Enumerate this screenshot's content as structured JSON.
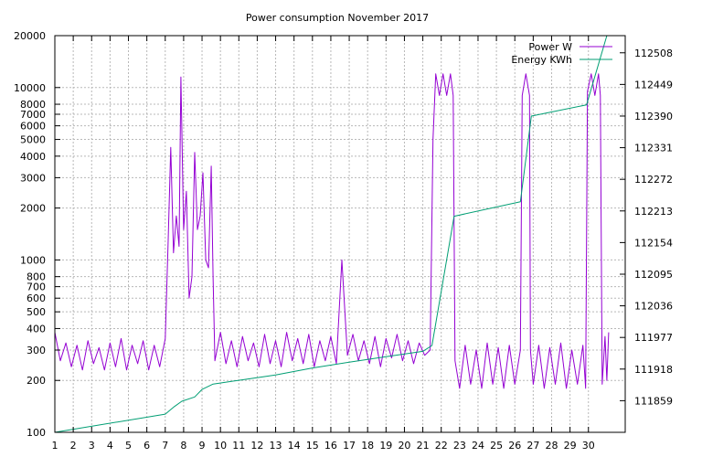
{
  "chart_data": {
    "type": "line",
    "title": "Power consumption November 2017",
    "x": {
      "range": [
        1,
        32
      ],
      "ticks": [
        1,
        2,
        3,
        4,
        5,
        6,
        7,
        8,
        9,
        10,
        11,
        12,
        13,
        14,
        15,
        16,
        17,
        18,
        19,
        20,
        21,
        22,
        23,
        24,
        25,
        26,
        27,
        28,
        29,
        30
      ]
    },
    "y_left": {
      "scale": "log",
      "range": [
        100,
        20000
      ],
      "ticks": [
        100,
        200,
        300,
        400,
        500,
        600,
        700,
        800,
        1000,
        2000,
        3000,
        4000,
        5000,
        6000,
        7000,
        8000,
        10000,
        20000
      ]
    },
    "y_right": {
      "range": [
        111800,
        112540
      ],
      "ticks": [
        111859,
        111918,
        111977,
        112036,
        112095,
        112154,
        112213,
        112272,
        112331,
        112390,
        112449,
        112508
      ]
    },
    "grid": true,
    "legend_position": "top-right",
    "series": [
      {
        "name": "Power W",
        "axis": "left",
        "color": "#9400d3",
        "points": [
          [
            1,
            380
          ],
          [
            1.3,
            260
          ],
          [
            1.6,
            330
          ],
          [
            1.9,
            240
          ],
          [
            2.2,
            320
          ],
          [
            2.5,
            230
          ],
          [
            2.8,
            340
          ],
          [
            3.1,
            250
          ],
          [
            3.4,
            310
          ],
          [
            3.7,
            230
          ],
          [
            4.0,
            330
          ],
          [
            4.3,
            240
          ],
          [
            4.6,
            350
          ],
          [
            4.9,
            230
          ],
          [
            5.2,
            320
          ],
          [
            5.5,
            250
          ],
          [
            5.8,
            340
          ],
          [
            6.1,
            230
          ],
          [
            6.4,
            320
          ],
          [
            6.7,
            240
          ],
          [
            7.0,
            350
          ],
          [
            7.15,
            1200
          ],
          [
            7.3,
            4500
          ],
          [
            7.45,
            1100
          ],
          [
            7.6,
            1800
          ],
          [
            7.75,
            1200
          ],
          [
            7.85,
            11500
          ],
          [
            8.0,
            1500
          ],
          [
            8.15,
            2500
          ],
          [
            8.3,
            600
          ],
          [
            8.45,
            800
          ],
          [
            8.6,
            4200
          ],
          [
            8.75,
            1500
          ],
          [
            8.9,
            1800
          ],
          [
            9.05,
            3200
          ],
          [
            9.2,
            1000
          ],
          [
            9.35,
            900
          ],
          [
            9.5,
            3500
          ],
          [
            9.6,
            800
          ],
          [
            9.7,
            260
          ],
          [
            10.0,
            380
          ],
          [
            10.3,
            250
          ],
          [
            10.6,
            340
          ],
          [
            10.9,
            240
          ],
          [
            11.2,
            360
          ],
          [
            11.5,
            260
          ],
          [
            11.8,
            330
          ],
          [
            12.1,
            240
          ],
          [
            12.4,
            370
          ],
          [
            12.7,
            250
          ],
          [
            13.0,
            340
          ],
          [
            13.3,
            240
          ],
          [
            13.6,
            380
          ],
          [
            13.9,
            260
          ],
          [
            14.2,
            350
          ],
          [
            14.5,
            250
          ],
          [
            14.8,
            370
          ],
          [
            15.1,
            240
          ],
          [
            15.4,
            340
          ],
          [
            15.7,
            260
          ],
          [
            16.0,
            360
          ],
          [
            16.3,
            250
          ],
          [
            16.6,
            1000
          ],
          [
            16.9,
            280
          ],
          [
            17.2,
            370
          ],
          [
            17.5,
            260
          ],
          [
            17.8,
            340
          ],
          [
            18.1,
            250
          ],
          [
            18.4,
            360
          ],
          [
            18.7,
            240
          ],
          [
            19.0,
            350
          ],
          [
            19.3,
            270
          ],
          [
            19.6,
            370
          ],
          [
            19.9,
            260
          ],
          [
            20.2,
            340
          ],
          [
            20.5,
            250
          ],
          [
            20.8,
            330
          ],
          [
            21.1,
            280
          ],
          [
            21.4,
            300
          ],
          [
            21.55,
            5000
          ],
          [
            21.7,
            12000
          ],
          [
            21.9,
            9000
          ],
          [
            22.1,
            12000
          ],
          [
            22.3,
            9000
          ],
          [
            22.5,
            12000
          ],
          [
            22.65,
            9000
          ],
          [
            22.75,
            260
          ],
          [
            23.0,
            180
          ],
          [
            23.3,
            320
          ],
          [
            23.6,
            190
          ],
          [
            23.9,
            300
          ],
          [
            24.2,
            180
          ],
          [
            24.5,
            330
          ],
          [
            24.8,
            190
          ],
          [
            25.1,
            310
          ],
          [
            25.4,
            180
          ],
          [
            25.7,
            320
          ],
          [
            26.0,
            190
          ],
          [
            26.3,
            300
          ],
          [
            26.4,
            9000
          ],
          [
            26.6,
            12000
          ],
          [
            26.8,
            9000
          ],
          [
            26.85,
            300
          ],
          [
            27.0,
            190
          ],
          [
            27.3,
            320
          ],
          [
            27.6,
            180
          ],
          [
            27.9,
            310
          ],
          [
            28.2,
            190
          ],
          [
            28.5,
            330
          ],
          [
            28.8,
            180
          ],
          [
            29.1,
            300
          ],
          [
            29.4,
            190
          ],
          [
            29.7,
            320
          ],
          [
            29.85,
            180
          ],
          [
            29.95,
            9500
          ],
          [
            30.15,
            12000
          ],
          [
            30.35,
            9000
          ],
          [
            30.55,
            12000
          ],
          [
            30.65,
            9000
          ],
          [
            30.75,
            190
          ],
          [
            30.9,
            360
          ],
          [
            31.0,
            200
          ],
          [
            31.1,
            380
          ]
        ]
      },
      {
        "name": "Energy KWh",
        "axis": "right",
        "color": "#009e73",
        "points": [
          [
            1,
            111800
          ],
          [
            7,
            111834
          ],
          [
            7.5,
            111848
          ],
          [
            7.9,
            111858
          ],
          [
            8.6,
            111866
          ],
          [
            9.0,
            111880
          ],
          [
            9.6,
            111890
          ],
          [
            11,
            111897
          ],
          [
            13,
            111907
          ],
          [
            15,
            111920
          ],
          [
            17,
            111931
          ],
          [
            19,
            111941
          ],
          [
            21,
            111951
          ],
          [
            21.5,
            111962
          ],
          [
            22.7,
            112203
          ],
          [
            26.3,
            112230
          ],
          [
            26.9,
            112390
          ],
          [
            29.9,
            112411
          ],
          [
            31.0,
            112540
          ]
        ]
      }
    ]
  }
}
